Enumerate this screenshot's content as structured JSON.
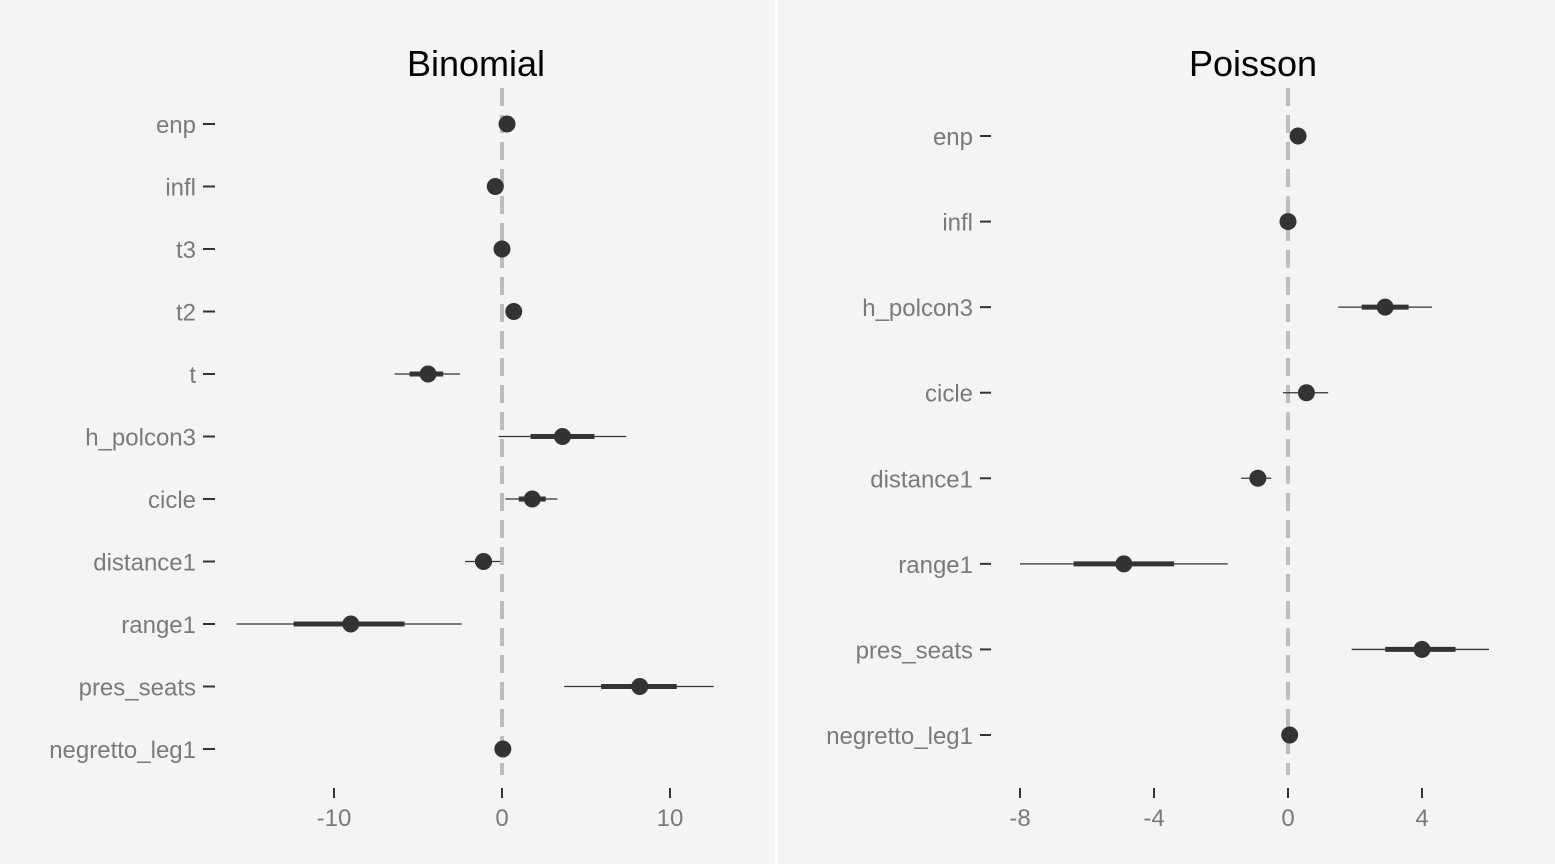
{
  "chart_data": [
    {
      "type": "scatter",
      "title": "Binomial",
      "xlabel": "",
      "ylabel": "",
      "xlim": [
        -16,
        13.5
      ],
      "xticks": [
        -10,
        0,
        10
      ],
      "xtick_labels": [
        "-10",
        "0",
        "10"
      ],
      "reference_line": 0,
      "grid": false,
      "categories": [
        "enp",
        "infl",
        "t3",
        "t2",
        "t",
        "h_polcon3",
        "cicle",
        "distance1",
        "range1",
        "pres_seats",
        "negretto_leg1"
      ],
      "estimate": [
        0.3,
        -0.4,
        0.0,
        0.7,
        -4.4,
        3.6,
        1.8,
        -1.1,
        -9.0,
        8.2,
        0.05
      ],
      "inner_low": [
        0.3,
        -0.4,
        0.0,
        0.7,
        -5.5,
        1.7,
        1.0,
        -1.6,
        -12.4,
        5.9,
        0.05
      ],
      "inner_high": [
        0.3,
        -0.4,
        0.0,
        0.7,
        -3.5,
        5.5,
        2.6,
        -0.6,
        -5.8,
        10.4,
        0.05
      ],
      "outer_low": [
        0.3,
        -0.4,
        0.0,
        0.7,
        -6.4,
        -0.2,
        0.2,
        -2.2,
        -15.8,
        3.7,
        0.05
      ],
      "outer_high": [
        0.3,
        -0.4,
        0.0,
        0.7,
        -2.5,
        7.4,
        3.3,
        -0.1,
        -2.4,
        12.6,
        0.05
      ]
    },
    {
      "type": "scatter",
      "title": "Poisson",
      "xlabel": "",
      "ylabel": "",
      "xlim": [
        -8.5,
        6.3
      ],
      "xticks": [
        -8,
        -4,
        0,
        4
      ],
      "xtick_labels": [
        "-8",
        "-4",
        "0",
        "4"
      ],
      "reference_line": 0,
      "grid": false,
      "categories": [
        "enp",
        "infl",
        "h_polcon3",
        "cicle",
        "distance1",
        "range1",
        "pres_seats",
        "negretto_leg1"
      ],
      "estimate": [
        0.3,
        0.0,
        2.9,
        0.55,
        -0.9,
        -4.9,
        4.0,
        0.05
      ],
      "inner_low": [
        0.3,
        0.0,
        2.2,
        0.35,
        -1.1,
        -6.4,
        2.9,
        0.05
      ],
      "inner_high": [
        0.3,
        0.0,
        3.6,
        0.75,
        -0.7,
        -3.4,
        5.0,
        0.05
      ],
      "outer_low": [
        0.3,
        0.0,
        1.5,
        -0.15,
        -1.4,
        -8.0,
        1.9,
        0.05
      ],
      "outer_high": [
        0.3,
        0.0,
        4.3,
        1.2,
        -0.5,
        -1.8,
        6.0,
        0.05
      ]
    }
  ],
  "colors": {
    "background": "#f4f4f4",
    "point": "#333333",
    "interval": "#333333",
    "reference_line": "#bdbdbd",
    "axis_text": "#7a7a7a",
    "tick": "#333333"
  }
}
